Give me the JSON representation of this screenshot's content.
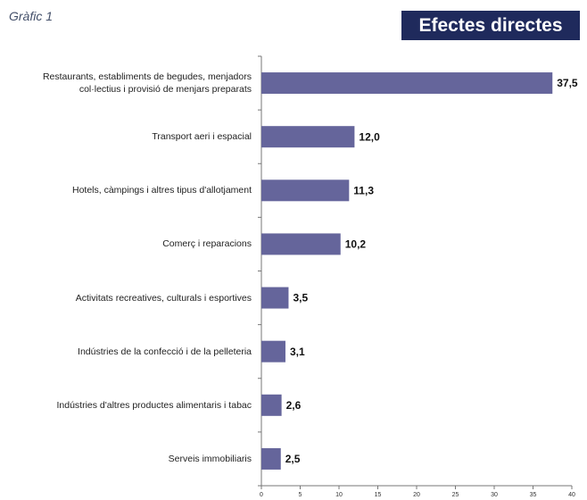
{
  "chart_data": {
    "type": "bar",
    "orientation": "horizontal",
    "label": "Gràfic 1",
    "title": "Efectes directes",
    "categories": [
      "Restaurants, establiments de begudes, menjadors\ncol·lectius i provisió de menjars preparats",
      "Transport aeri i espacial",
      "Hotels, càmpings i altres tipus d'allotjament",
      "Comerç i reparacions",
      "Activitats recreatives, culturals i esportives",
      "Indústries de la confecció i de la pelleteria",
      "Indústries d'altres productes alimentaris i tabac",
      "Serveis immobiliaris"
    ],
    "values": [
      37.5,
      12.0,
      11.3,
      10.2,
      3.5,
      3.1,
      2.6,
      2.5
    ],
    "value_labels": [
      "37,5",
      "12,0",
      "11,3",
      "10,2",
      "3,5",
      "3,1",
      "2,6",
      "2,5"
    ],
    "color": "#65659b",
    "xlim": [
      0,
      40
    ],
    "xticks": [
      0,
      5,
      10,
      15,
      20,
      25,
      30,
      35,
      40
    ]
  }
}
